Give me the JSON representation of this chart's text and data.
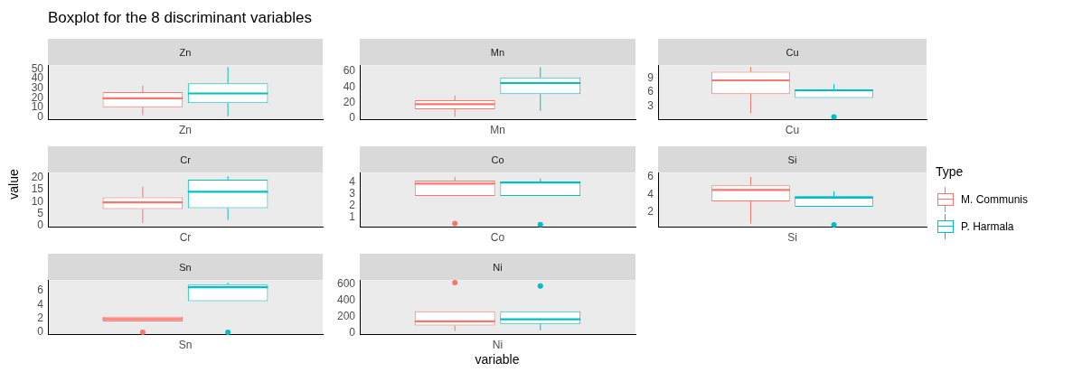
{
  "chart_data": [
    {
      "type": "box",
      "title": "Zn",
      "categories": [
        "Zn"
      ],
      "ylim": [
        -2,
        54
      ],
      "yticks": [
        0,
        10,
        20,
        30,
        40,
        50
      ],
      "series": [
        {
          "color": "#f8766d",
          "boxes": [
            {
              "low": 2.2,
              "q1": 10.3,
              "median": 19.7,
              "q3": 26,
              "high": 32.8
            }
          ]
        },
        {
          "color": "#00bfc4",
          "boxes": [
            {
              "low": 1,
              "q1": 14.7,
              "median": 24.7,
              "q3": 35.3,
              "high": 52
            }
          ]
        }
      ]
    },
    {
      "type": "box",
      "title": "Mn",
      "categories": [
        "Mn"
      ],
      "ylim": [
        -1.5,
        68
      ],
      "yticks": [
        0,
        20,
        40,
        60
      ],
      "series": [
        {
          "color": "#f8766d",
          "boxes": [
            {
              "low": 1.6,
              "q1": 11.3,
              "median": 17.9,
              "q3": 22.9,
              "high": 28.7
            }
          ]
        },
        {
          "color": "#00bfc4",
          "boxes": [
            {
              "low": 9.3,
              "q1": 30.7,
              "median": 45,
              "q3": 52.3,
              "high": 65.5
            }
          ]
        }
      ]
    },
    {
      "type": "box",
      "title": "Cu",
      "categories": [
        "Cu"
      ],
      "ylim": [
        0.3,
        11.7
      ],
      "yticks": [
        3,
        6,
        9
      ],
      "series": [
        {
          "color": "#f8766d",
          "boxes": [
            {
              "low": 1.5,
              "q1": 5.6,
              "median": 8.5,
              "q3": 10.3,
              "high": 11.3
            }
          ]
        },
        {
          "color": "#00bfc4",
          "boxes": [
            {
              "low": 4.8,
              "q1": 4.8,
              "median": 6.4,
              "q3": 6.6,
              "high": 7.7,
              "outliers": [
                0.8
              ]
            }
          ]
        }
      ]
    },
    {
      "type": "box",
      "title": "Cr",
      "categories": [
        "Cr"
      ],
      "ylim": [
        -0.4,
        22
      ],
      "yticks": [
        0,
        5,
        10,
        15,
        20
      ],
      "series": [
        {
          "color": "#f8766d",
          "boxes": [
            {
              "low": 1.1,
              "q1": 6.9,
              "median": 9.7,
              "q3": 11.8,
              "high": 16.3
            }
          ]
        },
        {
          "color": "#00bfc4",
          "boxes": [
            {
              "low": 2.4,
              "q1": 7.3,
              "median": 14.1,
              "q3": 19.1,
              "high": 20.5
            }
          ]
        }
      ]
    },
    {
      "type": "box",
      "title": "Co",
      "categories": [
        "Co"
      ],
      "ylim": [
        0.16,
        4.86
      ],
      "yticks": [
        1,
        2,
        3,
        4
      ],
      "series": [
        {
          "color": "#f8766d",
          "boxes": [
            {
              "low": 2.84,
              "q1": 2.84,
              "median": 3.9,
              "q3": 4.17,
              "high": 4.5,
              "outliers": [
                0.43
              ]
            }
          ]
        },
        {
          "color": "#00bfc4",
          "boxes": [
            {
              "low": 2.84,
              "q1": 2.84,
              "median": 4,
              "q3": 4.07,
              "high": 4.34,
              "outliers": [
                0.33
              ]
            }
          ]
        }
      ]
    },
    {
      "type": "box",
      "title": "Si",
      "categories": [
        "Si"
      ],
      "ylim": [
        0.29,
        6.5
      ],
      "yticks": [
        2,
        4,
        6
      ],
      "legend": "right",
      "legend_title": "Type",
      "series": [
        {
          "name": "M. Communis",
          "color": "#f8766d",
          "boxes": [
            {
              "low": 0.64,
              "q1": 3.19,
              "median": 4.5,
              "q3": 5.03,
              "high": 6
            }
          ]
        },
        {
          "name": "P. Harmala",
          "color": "#00bfc4",
          "boxes": [
            {
              "low": 2.57,
              "q1": 2.57,
              "median": 3.63,
              "q3": 3.8,
              "high": 4.37,
              "outliers": [
                0.5
              ]
            }
          ]
        }
      ]
    },
    {
      "type": "box",
      "title": "Sn",
      "categories": [
        "Sn"
      ],
      "ylim": [
        -0.25,
        7.5
      ],
      "yticks": [
        0,
        2,
        4,
        6
      ],
      "series": [
        {
          "color": "#f8766d",
          "boxes": [
            {
              "low": 1.56,
              "q1": 1.56,
              "median": 1.9,
              "q3": 2.24,
              "high": 2.24,
              "outliers": [
                0
              ]
            }
          ]
        },
        {
          "color": "#00bfc4",
          "boxes": [
            {
              "low": 4.47,
              "q1": 4.47,
              "median": 6.47,
              "q3": 6.84,
              "high": 7.14,
              "outliers": [
                0
              ]
            }
          ]
        }
      ]
    },
    {
      "type": "box",
      "title": "Ni",
      "categories": [
        "Ni"
      ],
      "ylim": [
        -16,
        646
      ],
      "yticks": [
        0,
        200,
        400,
        600
      ],
      "series": [
        {
          "color": "#f8766d",
          "boxes": [
            {
              "low": 20,
              "q1": 88,
              "median": 140,
              "q3": 264,
              "high": 264,
              "outliers": [
                615
              ]
            }
          ]
        },
        {
          "color": "#00bfc4",
          "boxes": [
            {
              "low": 30,
              "q1": 108,
              "median": 166,
              "q3": 264,
              "high": 264,
              "outliers": [
                574
              ]
            }
          ]
        }
      ]
    },
    {
      "type": "other",
      "title": "Boxplot for the 8 discriminant variables",
      "xlabel": "variable",
      "ylabel": "value"
    }
  ]
}
